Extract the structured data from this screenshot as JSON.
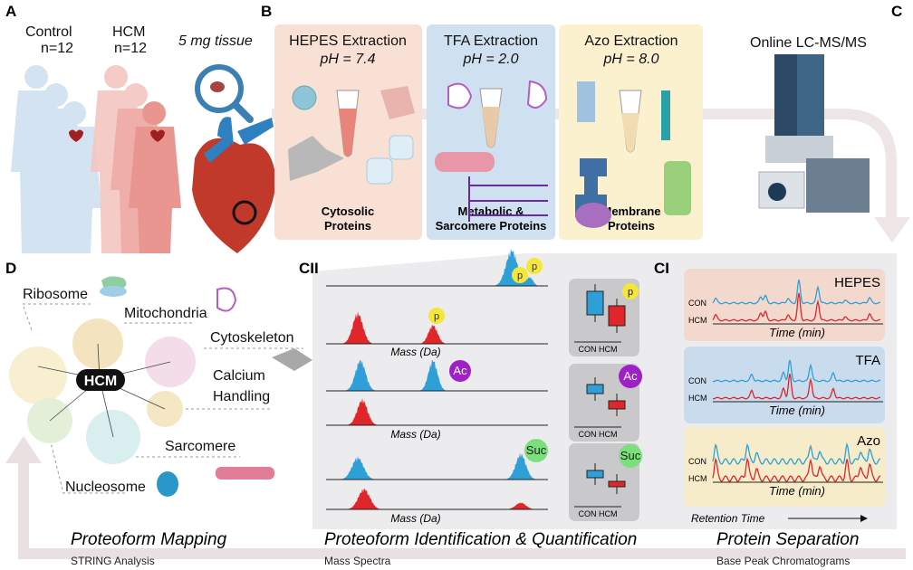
{
  "panels": {
    "A": "A",
    "B": "B",
    "C": "C",
    "CII": "CII",
    "CI": "CI",
    "D": "D"
  },
  "panel_a": {
    "control_label": "Control",
    "control_n": "n=12",
    "hcm_label": "HCM",
    "hcm_n": "n=12",
    "tissue_label": "5 mg tissue"
  },
  "panel_b": {
    "extractions": [
      {
        "title": "HEPES Extraction",
        "ph": "pH = 7.4",
        "result_line1": "Cytosolic",
        "result_line2": "Proteins",
        "color": "#f8e0d4"
      },
      {
        "title": "TFA Extraction",
        "ph": "pH = 2.0",
        "result_line1": "Metabolic &",
        "result_line2": "Sarcomere Proteins",
        "color": "#cfe0f0"
      },
      {
        "title": "Azo Extraction",
        "ph": "pH = 8.0",
        "result_line1": "Membrane",
        "result_line2": "Proteins",
        "color": "#fbf1cf"
      }
    ]
  },
  "panel_c": {
    "instrument_label": "Online LC-MS/MS"
  },
  "panel_cii": {
    "xlabel": "Mass (Da)",
    "ptm_labels": [
      "p",
      "Ac",
      "Suc"
    ],
    "boxplot_xlabels": "CON HCM",
    "colors": {
      "con": "#2f9fd8",
      "hcm": "#e0262a"
    }
  },
  "panel_ci": {
    "methods": [
      "HEPES",
      "TFA",
      "Azo"
    ],
    "trace_labels": [
      "CON",
      "HCM"
    ],
    "xlabel": "Time (min)",
    "retention_label": "Retention Time"
  },
  "panel_d": {
    "center": "HCM",
    "nodes": [
      "Ribosome",
      "Mitochondria",
      "Cytoskeleton",
      "Calcium",
      "Handling",
      "Sarcomere",
      "Nucleosome"
    ]
  },
  "footer": {
    "mapping_title": "Proteoform Mapping",
    "mapping_sub": "STRING Analysis",
    "ident_title": "Proteoform Identification & Quantification",
    "ident_sub": "Mass Spectra",
    "sep_title": "Protein Separation",
    "sep_sub": "Base Peak Chromatograms"
  }
}
